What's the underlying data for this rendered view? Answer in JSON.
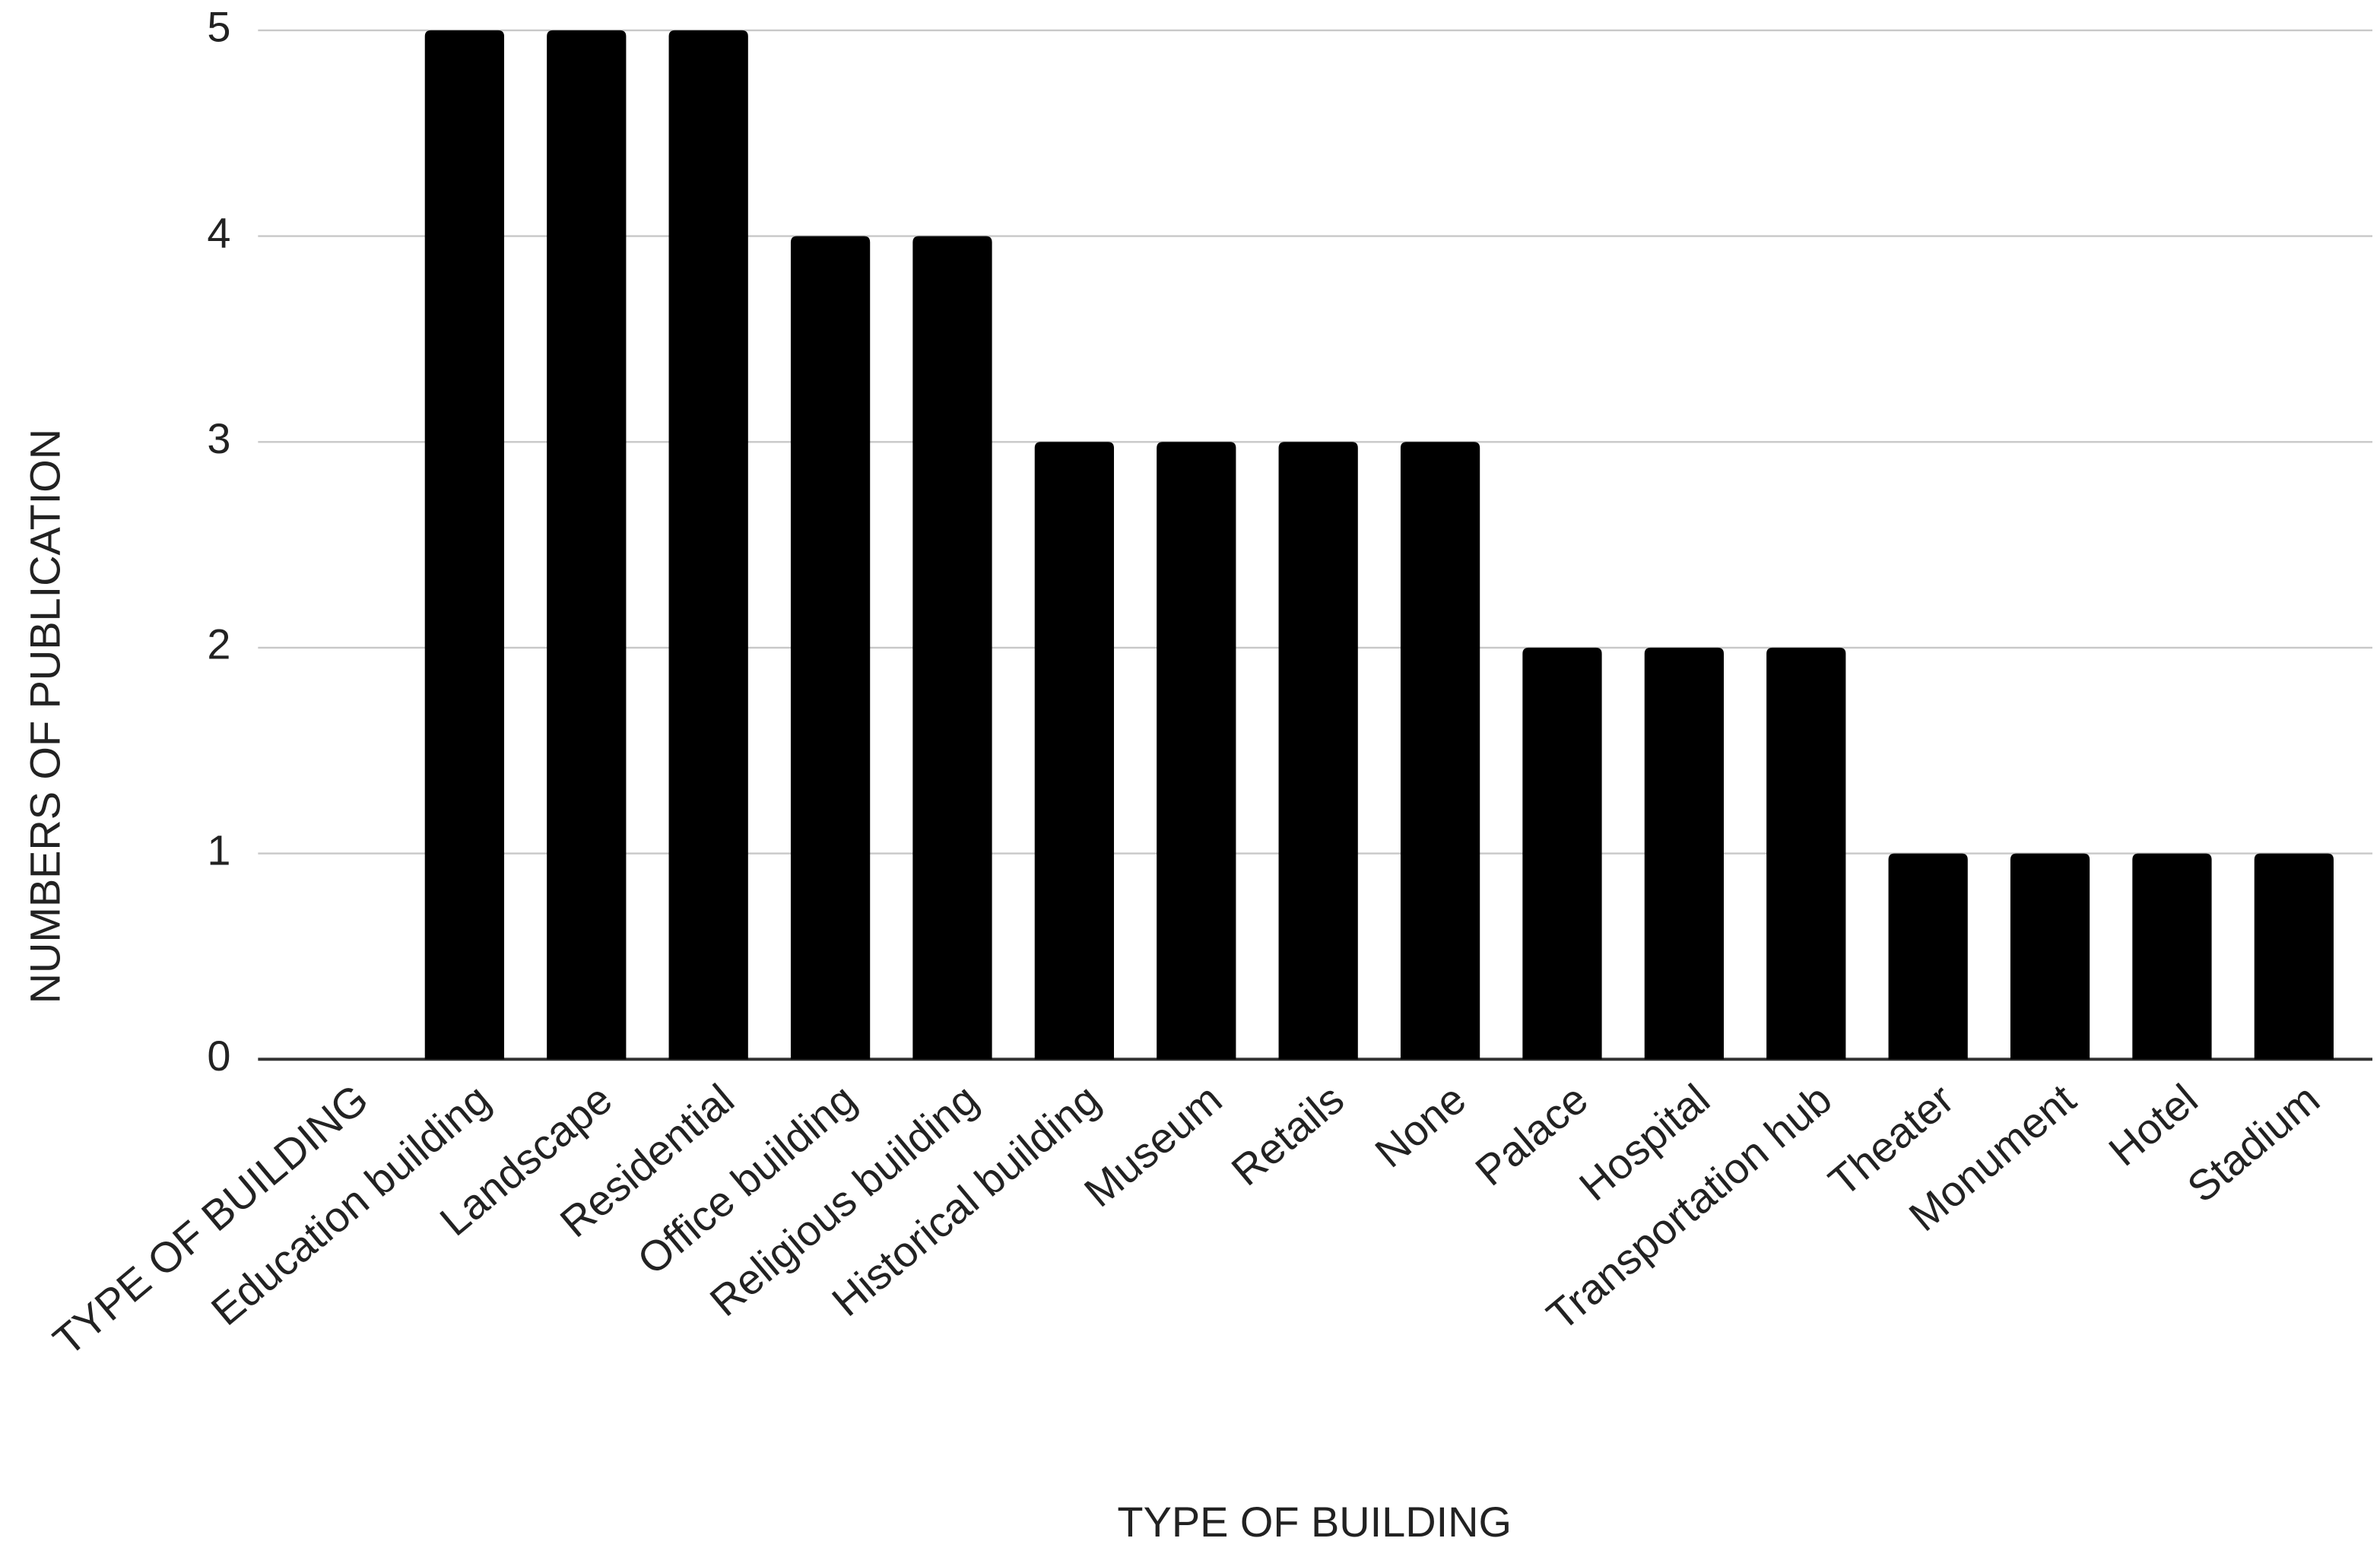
{
  "chart_data": {
    "type": "bar",
    "categories": [
      "TYPE OF BUILDING",
      "Education building",
      "Landscape",
      "Residential",
      "Office building",
      "Religious building",
      "Historical building",
      "Museum",
      "Retails",
      "None",
      "Palace",
      "Hospital",
      "Transportation hub",
      "Theater",
      "Monument",
      "Hotel",
      "Stadium"
    ],
    "values": [
      null,
      5,
      5,
      5,
      4,
      4,
      3,
      3,
      3,
      3,
      2,
      2,
      2,
      1,
      1,
      1,
      1
    ],
    "color": "#000000",
    "x_label": "TYPE OF BUILDING",
    "y_label": "NUMBERS OF PUBLICATION",
    "ylim": [
      0,
      5
    ],
    "yticks": [
      0,
      1,
      2,
      3,
      4,
      5
    ],
    "grid": true
  }
}
